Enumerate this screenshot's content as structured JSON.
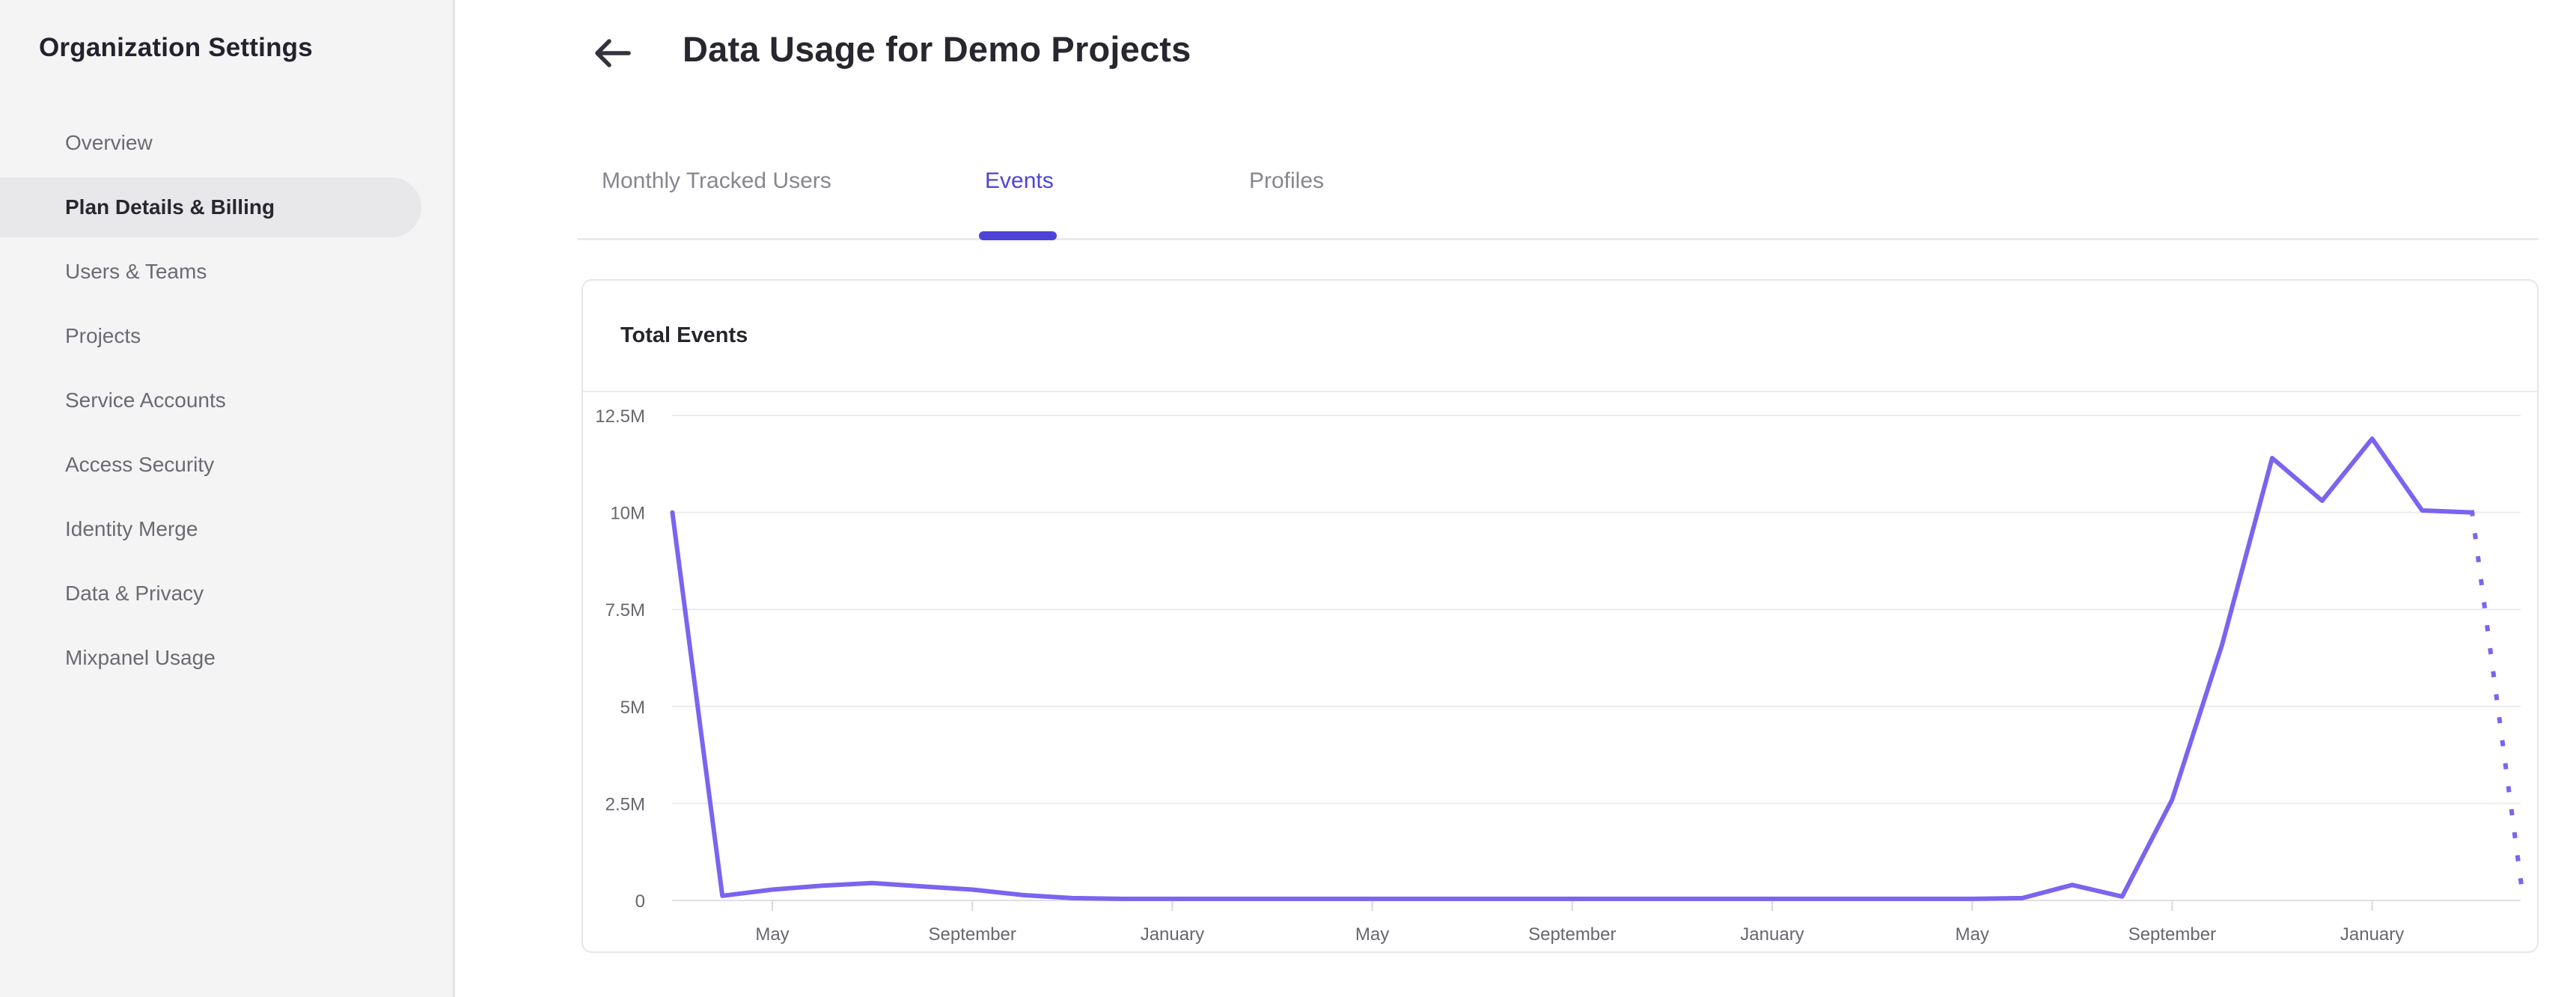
{
  "sidebar": {
    "title": "Organization Settings",
    "items": [
      {
        "label": "Overview",
        "selected": false
      },
      {
        "label": "Plan Details & Billing",
        "selected": true
      },
      {
        "label": "Users & Teams",
        "selected": false
      },
      {
        "label": "Projects",
        "selected": false
      },
      {
        "label": "Service Accounts",
        "selected": false
      },
      {
        "label": "Access Security",
        "selected": false
      },
      {
        "label": "Identity Merge",
        "selected": false
      },
      {
        "label": "Data & Privacy",
        "selected": false
      },
      {
        "label": "Mixpanel Usage",
        "selected": false
      }
    ]
  },
  "header": {
    "title": "Data Usage for Demo Projects",
    "back_icon": "arrow-left-icon"
  },
  "tabs": [
    {
      "label": "Monthly Tracked Users",
      "active": false
    },
    {
      "label": "Events",
      "active": true
    },
    {
      "label": "Profiles",
      "active": false
    }
  ],
  "card": {
    "title": "Total Events"
  },
  "colors": {
    "accent_purple": "#4e43d8",
    "line_purple": "#7a64f0",
    "sidebar_bg": "#f4f4f5",
    "selected_pill": "#e8e8ea",
    "text_dark": "#28272f",
    "text_gray": "#6b6a72",
    "tab_gray": "#87868e",
    "grid_line": "#ececef",
    "axis_line": "#e0e0e3",
    "axis_label": "#68676f"
  },
  "chart_data": {
    "type": "line",
    "title": "Total Events",
    "series_name": "Total Events",
    "y_unit": "events (millions)",
    "ylim": [
      0,
      12.5
    ],
    "grid": true,
    "legend": false,
    "y_ticks": [
      {
        "label": "12.5M",
        "value": 12.5
      },
      {
        "label": "10M",
        "value": 10
      },
      {
        "label": "7.5M",
        "value": 7.5
      },
      {
        "label": "5M",
        "value": 5
      },
      {
        "label": "2.5M",
        "value": 2.5
      },
      {
        "label": "0",
        "value": 0
      }
    ],
    "x_tick_labels": [
      "May",
      "September",
      "January",
      "May",
      "September",
      "January",
      "May",
      "September",
      "January"
    ],
    "x_tick_month_indices": [
      2,
      6,
      10,
      14,
      18,
      22,
      26,
      30,
      34
    ],
    "points_month_value_millions": [
      [
        0,
        10.0
      ],
      [
        1,
        0.12
      ],
      [
        2,
        0.28
      ],
      [
        3,
        0.38
      ],
      [
        4,
        0.45
      ],
      [
        5,
        0.36
      ],
      [
        6,
        0.28
      ],
      [
        7,
        0.14
      ],
      [
        8,
        0.06
      ],
      [
        9,
        0.04
      ],
      [
        10,
        0.04
      ],
      [
        11,
        0.04
      ],
      [
        12,
        0.04
      ],
      [
        13,
        0.04
      ],
      [
        14,
        0.04
      ],
      [
        15,
        0.04
      ],
      [
        16,
        0.04
      ],
      [
        17,
        0.04
      ],
      [
        18,
        0.04
      ],
      [
        19,
        0.04
      ],
      [
        20,
        0.04
      ],
      [
        21,
        0.04
      ],
      [
        22,
        0.04
      ],
      [
        23,
        0.04
      ],
      [
        24,
        0.04
      ],
      [
        25,
        0.04
      ],
      [
        26,
        0.04
      ],
      [
        27,
        0.06
      ],
      [
        28,
        0.4
      ],
      [
        29,
        0.1
      ],
      [
        30,
        2.6
      ],
      [
        31,
        6.6
      ],
      [
        32,
        11.4
      ],
      [
        33,
        10.3
      ],
      [
        34,
        11.9
      ],
      [
        35,
        10.05
      ],
      [
        36,
        10.0
      ]
    ],
    "dotted_tail_month_value_millions": [
      [
        36,
        10.0
      ],
      [
        37,
        0.25
      ]
    ]
  }
}
